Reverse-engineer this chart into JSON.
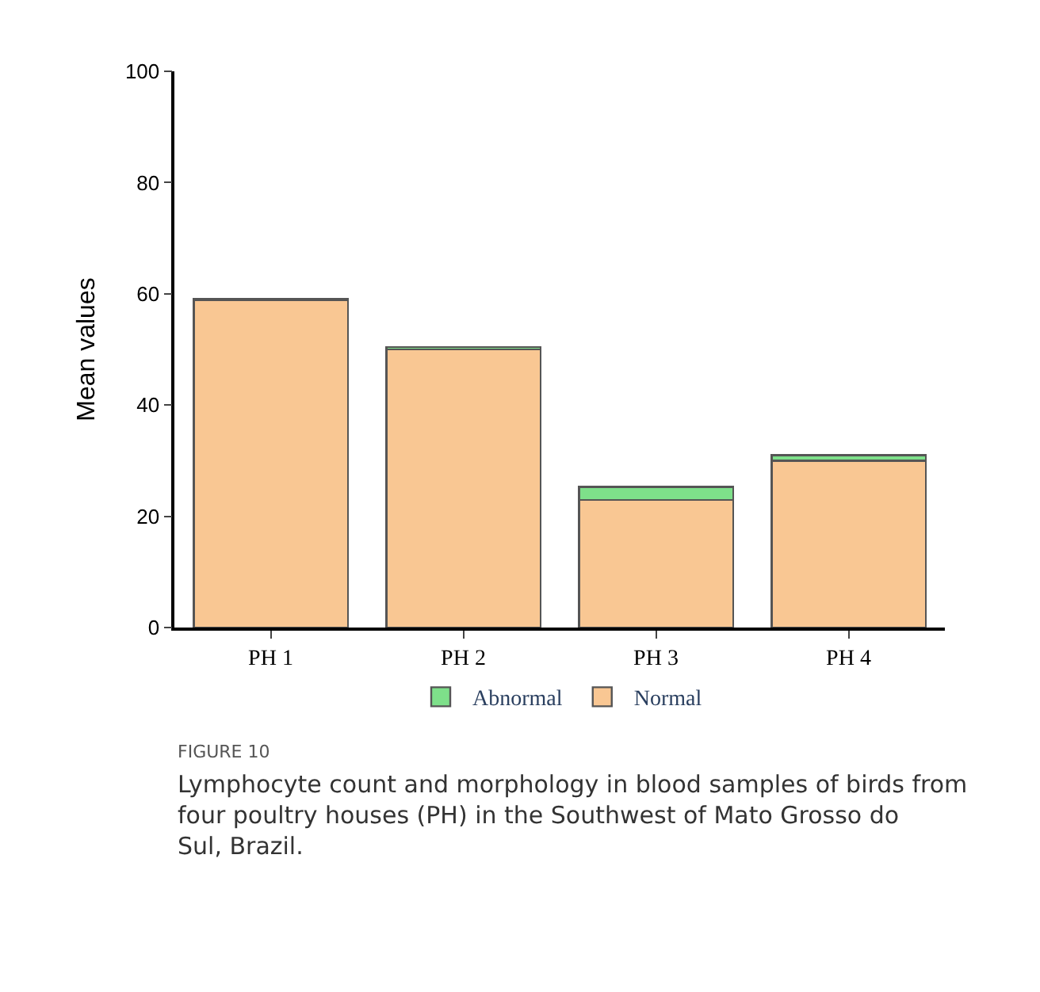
{
  "chart_data": {
    "type": "bar",
    "stacked": true,
    "ylabel": "Mean values",
    "categories": [
      "PH 1",
      "PH 2",
      "PH 3",
      "PH 4"
    ],
    "series": [
      {
        "name": "Normal",
        "color": "#f9c793",
        "values": [
          58.8,
          50.0,
          22.9,
          30.0
        ]
      },
      {
        "name": "Abnormal",
        "color": "#7ee08a",
        "values": [
          0.3,
          0.4,
          2.4,
          1.0
        ]
      }
    ],
    "ylim": [
      0,
      100
    ],
    "yticks": [
      0,
      20,
      40,
      60,
      80,
      100
    ],
    "grid": false,
    "legend": "bottom",
    "annotations": [
      "FIGURE 10",
      "Lymphocyte count and morphology in blood samples of birds from four poultry houses (PH) in the Southwest of Mato Grosso do Sul, Brazil."
    ]
  }
}
